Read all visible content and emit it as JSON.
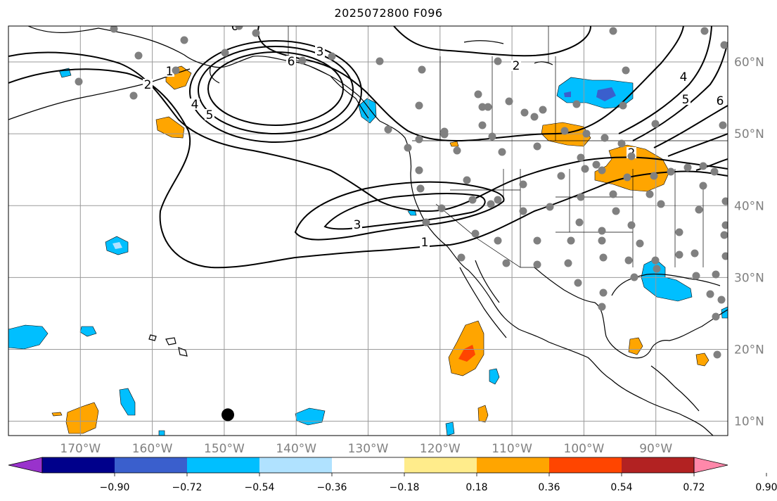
{
  "title": "2025072800 F096",
  "map": {
    "extent": {
      "lon_min": -180,
      "lon_max": -80,
      "lat_min": 8,
      "lat_max": 65
    },
    "lon_ticks": [
      {
        "value": -170,
        "label": "170°W"
      },
      {
        "value": -160,
        "label": "160°W"
      },
      {
        "value": -150,
        "label": "150°W"
      },
      {
        "value": -140,
        "label": "140°W"
      },
      {
        "value": -130,
        "label": "130°W"
      },
      {
        "value": -120,
        "label": "120°W"
      },
      {
        "value": -110,
        "label": "110°W"
      },
      {
        "value": -100,
        "label": "100°W"
      },
      {
        "value": -90,
        "label": "90°W"
      }
    ],
    "lat_ticks": [
      {
        "value": 10,
        "label": "10°N"
      },
      {
        "value": 20,
        "label": "20°N"
      },
      {
        "value": 30,
        "label": "30°N"
      },
      {
        "value": 40,
        "label": "40°N"
      },
      {
        "value": 50,
        "label": "50°N"
      },
      {
        "value": 60,
        "label": "60°N"
      }
    ],
    "contour_labels": [
      "1",
      "2",
      "3",
      "4",
      "5",
      "6"
    ],
    "station_color": "#808080",
    "marker_color": "#000000",
    "marker_position": {
      "lon": -149.5,
      "lat": 10.9
    }
  },
  "colorbar": {
    "colors": [
      "#9932cc",
      "#00008b",
      "#3a5fcd",
      "#00bfff",
      "#b0e2ff",
      "#ffffff",
      "#ffec8b",
      "#ffa500",
      "#ff4500",
      "#b22222",
      "#ff88aa"
    ],
    "tick_labels": [
      "−0.90",
      "−0.72",
      "−0.54",
      "−0.36",
      "−0.18",
      "0.18",
      "0.36",
      "0.54",
      "0.72",
      "0.90"
    ]
  },
  "legend_colors": {
    "light_blue": "#b0e2ff",
    "blue": "#00bfff",
    "royal": "#3a5fcd",
    "yellow": "#ffec8b",
    "orange": "#ffa500",
    "red": "#ff4500"
  }
}
